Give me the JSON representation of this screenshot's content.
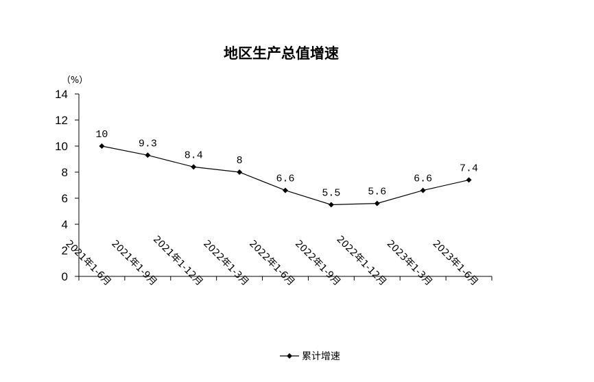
{
  "chart_data": {
    "type": "line",
    "title": "地区生产总值增速",
    "ylabel": "（%）",
    "xlabel": "",
    "categories": [
      "2021年1-6月",
      "2021年1-9月",
      "2021年1-12月",
      "2022年1-3月",
      "2022年1-6月",
      "2022年1-9月",
      "2022年1-12月",
      "2023年1-3月",
      "2023年1-6月"
    ],
    "series": [
      {
        "name": "累计增速",
        "values": [
          10,
          9.3,
          8.4,
          8,
          6.6,
          5.5,
          5.6,
          6.6,
          7.4
        ],
        "data_labels": [
          "10",
          "9.3",
          "8.4",
          "8",
          "6.6",
          "5.5",
          "5.6",
          "6.6",
          "7.4"
        ]
      }
    ],
    "ylim": [
      0,
      14
    ],
    "yticks": [
      0,
      2,
      4,
      6,
      8,
      10,
      12,
      14
    ],
    "ytick_labels": [
      "0",
      "2",
      "4",
      "6",
      "8",
      "10",
      "12",
      "14"
    ],
    "grid": false,
    "legend_position": "bottom",
    "colors": {
      "line": "#000000",
      "axis": "#000000",
      "background": "#ffffff"
    },
    "marker": "diamond"
  }
}
